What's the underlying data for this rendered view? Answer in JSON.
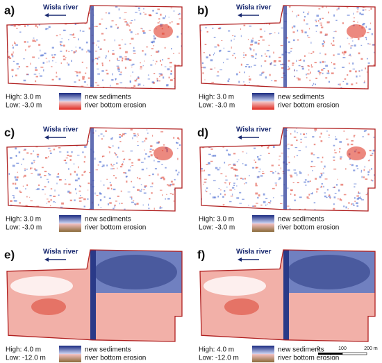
{
  "panels": [
    {
      "label": "a)",
      "river": "Wisła river",
      "high": "High: 3.0 m",
      "low": "Low: -3.0 m",
      "legend_high": "new sediments",
      "legend_low": "river bottom erosion"
    },
    {
      "label": "b)",
      "river": "Wisła river",
      "high": "High: 3.0 m",
      "low": "Low: -3.0 m",
      "legend_high": "new sediments",
      "legend_low": "river bottom erosion"
    },
    {
      "label": "c)",
      "river": "Wisła river",
      "high": "High: 3.0 m",
      "low": "Low: -3.0 m",
      "legend_high": "new sediments",
      "legend_low": "river bottom erosion"
    },
    {
      "label": "d)",
      "river": "Wisła river",
      "high": "High: 3.0 m",
      "low": "Low: -3.0 m",
      "legend_high": "new sediments",
      "legend_low": "river bottom erosion"
    },
    {
      "label": "e)",
      "river": "Wisła river",
      "high": "High: 4.0 m",
      "low": "Low: -12.0 m",
      "legend_high": "new sediments",
      "legend_low": "river bottom erosion"
    },
    {
      "label": "f)",
      "river": "Wisła river",
      "high": "High: 4.0 m",
      "low": "Low: -12.0 m",
      "legend_high": "new sediments",
      "legend_low": "river bottom erosion"
    }
  ],
  "scale_bar": {
    "ticks": [
      "0",
      "100",
      "200 m"
    ]
  }
}
